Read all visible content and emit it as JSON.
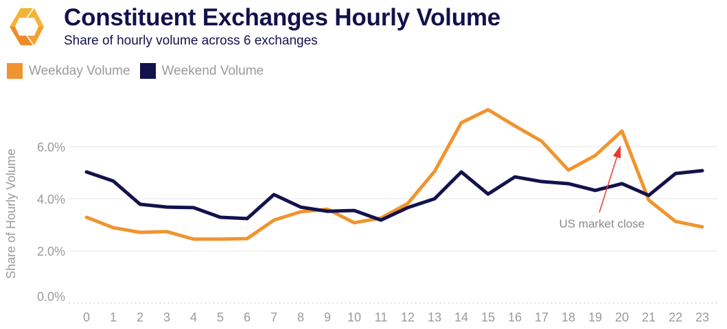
{
  "header": {
    "title": "Constituent Exchanges Hourly Volume",
    "subtitle": "Share of hourly volume across 6 exchanges",
    "logo": "orange-hexagon-logo"
  },
  "colors": {
    "weekday": "#f0942f",
    "weekend": "#12124d",
    "annotation": "#e83a2e",
    "axis_text": "#9a9a9a"
  },
  "chart_data": {
    "type": "line",
    "title": "Constituent Exchanges Hourly Volume",
    "subtitle": "Share of hourly volume across 6 exchanges",
    "xlabel": "",
    "ylabel": "Share of Hourly Volume",
    "x": [
      0,
      1,
      2,
      3,
      4,
      5,
      6,
      7,
      8,
      9,
      10,
      11,
      12,
      13,
      14,
      15,
      16,
      17,
      18,
      19,
      20,
      21,
      22,
      23
    ],
    "ylim": [
      0,
      7.6
    ],
    "yticks": [
      0,
      2,
      4,
      6
    ],
    "ytick_labels": [
      "0.0%",
      "2.0%",
      "4.0%",
      "6.0%"
    ],
    "grid": true,
    "legend": "top-left",
    "series": [
      {
        "name": "Weekday Volume",
        "color": "#f0942f",
        "values": [
          3.29,
          2.89,
          2.71,
          2.74,
          2.45,
          2.45,
          2.47,
          3.18,
          3.5,
          3.6,
          3.08,
          3.26,
          3.82,
          5.05,
          6.92,
          7.42,
          6.8,
          6.21,
          5.1,
          5.66,
          6.6,
          3.95,
          3.13,
          2.92
        ]
      },
      {
        "name": "Weekend Volume",
        "color": "#12124d",
        "values": [
          5.03,
          4.68,
          3.79,
          3.68,
          3.66,
          3.29,
          3.24,
          4.16,
          3.68,
          3.52,
          3.55,
          3.18,
          3.66,
          4.0,
          5.03,
          4.18,
          4.84,
          4.66,
          4.58,
          4.32,
          4.58,
          4.13,
          4.97,
          5.08
        ]
      }
    ],
    "annotations": [
      {
        "text": "US market close",
        "target_x": 20,
        "target_y": 6.05,
        "text_x": 19.2,
        "text_y": 2.95
      }
    ]
  }
}
